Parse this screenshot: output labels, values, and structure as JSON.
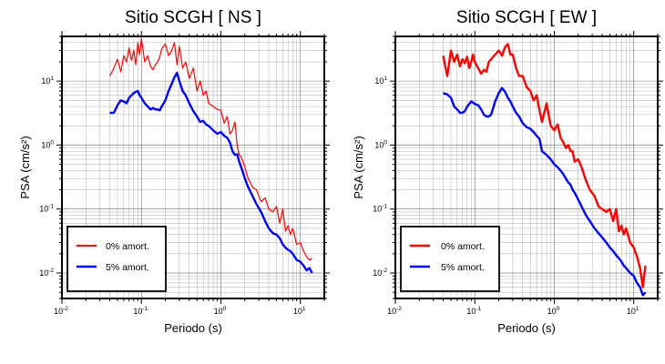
{
  "chart_data": [
    {
      "type": "line",
      "title": "Sitio SCGH [ NS ]",
      "xlabel": "Periodo (s)",
      "ylabel": "PSA (cm/s²)",
      "xscale": "log",
      "yscale": "log",
      "xlim": [
        0.01,
        20
      ],
      "ylim": [
        0.004,
        50
      ],
      "grid": true,
      "legend_position": "bottom-left",
      "x_ticks": [
        {
          "base": "10",
          "exp": "-2"
        },
        {
          "base": "10",
          "exp": "-1"
        },
        {
          "base": "10",
          "exp": "0"
        },
        {
          "base": "10",
          "exp": "1"
        }
      ],
      "y_ticks": [
        {
          "base": "10",
          "exp": "-2"
        },
        {
          "base": "10",
          "exp": "-1"
        },
        {
          "base": "10",
          "exp": "0"
        },
        {
          "base": "10",
          "exp": "1"
        }
      ],
      "series": [
        {
          "name": "0% amort.",
          "color": "#ff0000",
          "x": [
            0.04,
            0.045,
            0.05,
            0.055,
            0.06,
            0.065,
            0.07,
            0.075,
            0.08,
            0.085,
            0.09,
            0.095,
            0.1,
            0.11,
            0.12,
            0.13,
            0.14,
            0.15,
            0.16,
            0.17,
            0.18,
            0.2,
            0.22,
            0.24,
            0.26,
            0.28,
            0.3,
            0.33,
            0.36,
            0.4,
            0.45,
            0.5,
            0.55,
            0.6,
            0.65,
            0.7,
            0.8,
            0.9,
            1.0,
            1.1,
            1.2,
            1.3,
            1.4,
            1.5,
            1.6,
            1.7,
            1.8,
            2.0,
            2.2,
            2.5,
            2.8,
            3.2,
            3.6,
            4.0,
            4.5,
            5.0,
            5.5,
            6.0,
            6.5,
            7.0,
            7.5,
            8.0,
            9.0,
            10.0,
            11.0,
            12.0,
            13.0,
            14.0
          ],
          "y": [
            12,
            16,
            22,
            14,
            25,
            20,
            33,
            21,
            30,
            18,
            40,
            26,
            46,
            20,
            25,
            17,
            15,
            18,
            20,
            24,
            32,
            38,
            25,
            30,
            40,
            18,
            35,
            16,
            20,
            11,
            16,
            7,
            10,
            6,
            7,
            4.5,
            4,
            3.6,
            3.5,
            2.2,
            2.8,
            1.5,
            1.7,
            2.3,
            1.0,
            0.7,
            0.65,
            0.45,
            0.3,
            0.22,
            0.2,
            0.13,
            0.15,
            0.1,
            0.09,
            0.11,
            0.06,
            0.1,
            0.045,
            0.055,
            0.04,
            0.05,
            0.028,
            0.03,
            0.022,
            0.018,
            0.016,
            0.017
          ]
        },
        {
          "name": "5% amort.",
          "color": "#0000ff",
          "x": [
            0.04,
            0.045,
            0.05,
            0.055,
            0.06,
            0.065,
            0.07,
            0.075,
            0.08,
            0.085,
            0.09,
            0.095,
            0.1,
            0.11,
            0.12,
            0.13,
            0.14,
            0.15,
            0.16,
            0.17,
            0.18,
            0.2,
            0.22,
            0.24,
            0.26,
            0.28,
            0.3,
            0.33,
            0.36,
            0.4,
            0.45,
            0.5,
            0.55,
            0.6,
            0.65,
            0.7,
            0.8,
            0.9,
            1.0,
            1.1,
            1.2,
            1.3,
            1.4,
            1.5,
            1.6,
            1.7,
            1.8,
            2.0,
            2.2,
            2.5,
            2.8,
            3.2,
            3.6,
            4.0,
            4.5,
            5.0,
            5.5,
            6.0,
            6.5,
            7.0,
            7.5,
            8.0,
            9.0,
            10.0,
            11.0,
            12.0,
            13.0,
            14.0
          ],
          "y": [
            3.2,
            3.2,
            4.2,
            5.0,
            4.8,
            4.5,
            5.5,
            6.0,
            6.5,
            6.8,
            7.0,
            6.0,
            5.5,
            4.5,
            4.0,
            3.6,
            3.8,
            3.6,
            3.6,
            3.5,
            4.0,
            5.0,
            7.0,
            9.0,
            11.5,
            13.5,
            10.0,
            7.0,
            6.0,
            4.5,
            3.4,
            2.8,
            2.3,
            2.4,
            2.1,
            2.0,
            1.7,
            1.5,
            1.6,
            1.4,
            1.3,
            1.1,
            0.8,
            0.7,
            0.72,
            0.55,
            0.45,
            0.3,
            0.22,
            0.16,
            0.12,
            0.09,
            0.065,
            0.05,
            0.042,
            0.04,
            0.035,
            0.028,
            0.025,
            0.023,
            0.022,
            0.02,
            0.016,
            0.015,
            0.013,
            0.011,
            0.012,
            0.01
          ]
        }
      ]
    },
    {
      "type": "line",
      "title": "Sitio SCGH [ EW ]",
      "xlabel": "Periodo (s)",
      "ylabel": "PSA (cm/s²)",
      "xscale": "log",
      "yscale": "log",
      "xlim": [
        0.01,
        20
      ],
      "ylim": [
        0.004,
        50
      ],
      "grid": true,
      "legend_position": "bottom-left",
      "x_ticks": [
        {
          "base": "10",
          "exp": "-2"
        },
        {
          "base": "10",
          "exp": "-1"
        },
        {
          "base": "10",
          "exp": "0"
        },
        {
          "base": "10",
          "exp": "1"
        }
      ],
      "y_ticks": [
        {
          "base": "10",
          "exp": "-2"
        },
        {
          "base": "10",
          "exp": "-1"
        },
        {
          "base": "10",
          "exp": "0"
        },
        {
          "base": "10",
          "exp": "1"
        }
      ],
      "series": [
        {
          "name": "0% amort.",
          "color": "#ff0000",
          "x": [
            0.04,
            0.045,
            0.05,
            0.055,
            0.06,
            0.065,
            0.07,
            0.075,
            0.08,
            0.085,
            0.09,
            0.095,
            0.1,
            0.11,
            0.12,
            0.13,
            0.14,
            0.15,
            0.16,
            0.17,
            0.18,
            0.2,
            0.22,
            0.24,
            0.26,
            0.28,
            0.3,
            0.33,
            0.36,
            0.4,
            0.45,
            0.5,
            0.55,
            0.6,
            0.65,
            0.7,
            0.8,
            0.9,
            1.0,
            1.1,
            1.2,
            1.3,
            1.4,
            1.5,
            1.6,
            1.7,
            1.8,
            2.0,
            2.2,
            2.5,
            2.8,
            3.2,
            3.6,
            4.0,
            4.5,
            5.0,
            5.5,
            6.0,
            6.5,
            7.0,
            7.5,
            8.0,
            9.0,
            10.0,
            11.0,
            12.0,
            13.0,
            14.0
          ],
          "y": [
            25,
            12,
            30,
            20,
            26,
            17,
            22,
            19,
            24,
            16,
            20,
            26,
            20,
            16,
            13,
            15,
            14,
            20,
            22,
            24,
            26,
            30,
            25,
            34,
            38,
            26,
            26,
            16,
            12,
            12,
            8,
            7,
            5,
            6,
            3.5,
            2.3,
            4.5,
            2.0,
            1.7,
            2.1,
            1.3,
            1.1,
            0.9,
            1.0,
            0.8,
            0.8,
            0.55,
            0.6,
            0.45,
            0.28,
            0.2,
            0.16,
            0.11,
            0.1,
            0.09,
            0.1,
            0.065,
            0.1,
            0.045,
            0.055,
            0.04,
            0.05,
            0.03,
            0.025,
            0.018,
            0.012,
            0.006,
            0.013
          ]
        },
        {
          "name": "5% amort.",
          "color": "#0000ff",
          "x": [
            0.04,
            0.045,
            0.05,
            0.055,
            0.06,
            0.065,
            0.07,
            0.075,
            0.08,
            0.085,
            0.09,
            0.095,
            0.1,
            0.11,
            0.12,
            0.13,
            0.14,
            0.15,
            0.16,
            0.17,
            0.18,
            0.2,
            0.22,
            0.24,
            0.26,
            0.28,
            0.3,
            0.33,
            0.36,
            0.4,
            0.45,
            0.5,
            0.55,
            0.6,
            0.65,
            0.7,
            0.8,
            0.9,
            1.0,
            1.1,
            1.2,
            1.3,
            1.4,
            1.5,
            1.6,
            1.7,
            1.8,
            2.0,
            2.2,
            2.5,
            2.8,
            3.2,
            3.6,
            4.0,
            4.5,
            5.0,
            5.5,
            6.0,
            6.5,
            7.0,
            7.5,
            8.0,
            9.0,
            10.0,
            11.0,
            12.0,
            13.0,
            14.0
          ],
          "y": [
            6.5,
            6.2,
            5.5,
            4.0,
            3.6,
            3.2,
            3.2,
            3.4,
            4.0,
            4.4,
            4.8,
            4.6,
            4.4,
            4.2,
            3.6,
            3.0,
            2.8,
            2.8,
            3.0,
            3.8,
            4.8,
            6.5,
            7.8,
            6.8,
            5.5,
            4.8,
            4.0,
            3.2,
            2.8,
            2.2,
            1.9,
            1.8,
            1.6,
            1.4,
            1.25,
            0.8,
            0.7,
            0.6,
            0.5,
            0.45,
            0.4,
            0.35,
            0.3,
            0.26,
            0.24,
            0.2,
            0.18,
            0.14,
            0.11,
            0.08,
            0.065,
            0.05,
            0.042,
            0.036,
            0.03,
            0.025,
            0.022,
            0.019,
            0.017,
            0.015,
            0.013,
            0.012,
            0.01,
            0.009,
            0.007,
            0.006,
            0.0045,
            0.005
          ]
        }
      ]
    }
  ]
}
